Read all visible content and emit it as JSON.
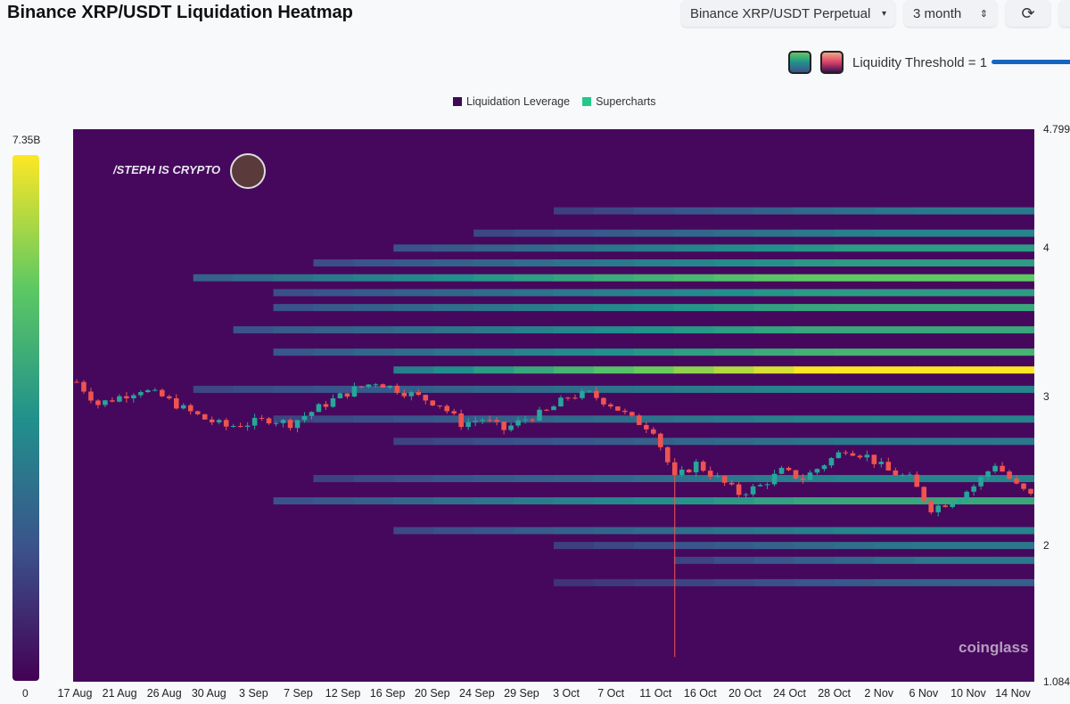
{
  "header": {
    "title": "Binance XRP/USDT Liquidation Heatmap",
    "pair": "Binance XRP/USDT Perpetual",
    "range": "3 month",
    "threshold": "Liquidity Threshold = 1"
  },
  "watermarks": {
    "author": "/STEPH IS CRYPTO",
    "brand": "coinglass"
  },
  "colorbar": {
    "max": "7.35B",
    "min": "0"
  },
  "chart_data": {
    "type": "heatmap",
    "title": "Binance XRP/USDT Liquidation Heatmap",
    "legend": [
      {
        "name": "Liquidation Leverage",
        "color": "#3d0a5a"
      },
      {
        "name": "Supercharts",
        "color": "#22c98a"
      }
    ],
    "y_ticks": [
      "4.799",
      "4",
      "3",
      "2",
      "1.084"
    ],
    "ylim": [
      1.084,
      4.799
    ],
    "x_ticks": [
      "17 Aug",
      "21 Aug",
      "26 Aug",
      "30 Aug",
      "3 Sep",
      "7 Sep",
      "12 Sep",
      "16 Sep",
      "20 Sep",
      "24 Sep",
      "29 Sep",
      "3 Oct",
      "7 Oct",
      "11 Oct",
      "16 Oct",
      "20 Oct",
      "24 Oct",
      "28 Oct",
      "2 Nov",
      "6 Nov",
      "10 Nov",
      "14 Nov"
    ],
    "price_every_2_days": [
      3.1,
      2.95,
      3.0,
      3.05,
      3.0,
      2.92,
      2.85,
      2.8,
      2.82,
      2.85,
      2.82,
      2.9,
      2.98,
      3.05,
      3.1,
      3.05,
      3.0,
      2.95,
      2.82,
      2.85,
      2.78,
      2.85,
      2.9,
      3.0,
      3.02,
      2.95,
      2.85,
      2.78,
      2.45,
      2.55,
      2.45,
      2.35,
      2.4,
      2.5,
      2.45,
      2.55,
      2.65,
      2.6,
      2.5,
      2.45,
      2.25,
      2.3,
      2.4,
      2.55,
      2.4,
      2.3
    ],
    "flash_crash_low": 1.25,
    "liquidation_bands": [
      {
        "price": 3.18,
        "intensity": 0.95,
        "start": 0.3
      },
      {
        "price": 3.3,
        "intensity": 0.55,
        "start": 0.2
      },
      {
        "price": 3.45,
        "intensity": 0.5,
        "start": 0.15
      },
      {
        "price": 3.6,
        "intensity": 0.5,
        "start": 0.2
      },
      {
        "price": 3.8,
        "intensity": 0.65,
        "start": 0.1
      },
      {
        "price": 3.7,
        "intensity": 0.45,
        "start": 0.2
      },
      {
        "price": 3.9,
        "intensity": 0.45,
        "start": 0.25
      },
      {
        "price": 4.0,
        "intensity": 0.45,
        "start": 0.3
      },
      {
        "price": 4.1,
        "intensity": 0.35,
        "start": 0.4
      },
      {
        "price": 4.25,
        "intensity": 0.3,
        "start": 0.5
      },
      {
        "price": 2.3,
        "intensity": 0.5,
        "start": 0.2
      },
      {
        "price": 2.45,
        "intensity": 0.35,
        "start": 0.25
      },
      {
        "price": 2.1,
        "intensity": 0.35,
        "start": 0.3
      },
      {
        "price": 2.0,
        "intensity": 0.3,
        "start": 0.5
      },
      {
        "price": 1.9,
        "intensity": 0.3,
        "start": 0.6
      },
      {
        "price": 1.75,
        "intensity": 0.2,
        "start": 0.5
      },
      {
        "price": 2.7,
        "intensity": 0.3,
        "start": 0.3
      },
      {
        "price": 2.85,
        "intensity": 0.35,
        "start": 0.2
      },
      {
        "price": 3.05,
        "intensity": 0.35,
        "start": 0.1
      }
    ]
  }
}
